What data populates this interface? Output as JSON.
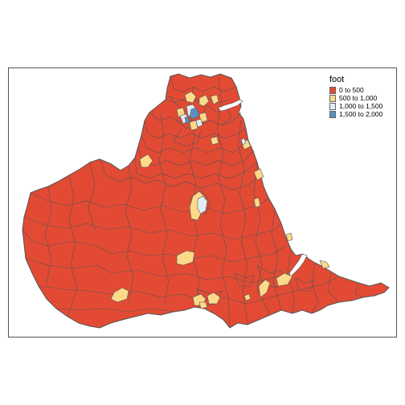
{
  "legend": {
    "title": "foot",
    "items": [
      {
        "label": "0 to 500",
        "color": "#e34a33"
      },
      {
        "label": "500 to 1,000",
        "color": "#fdd98a"
      },
      {
        "label": "1,000 to 1,500",
        "color": "#e0eef4"
      },
      {
        "label": "1,500 to 2,000",
        "color": "#5b8fc4"
      }
    ]
  },
  "colors": {
    "base": "#e34a33",
    "border": "#555555",
    "water": "#ffffff"
  }
}
